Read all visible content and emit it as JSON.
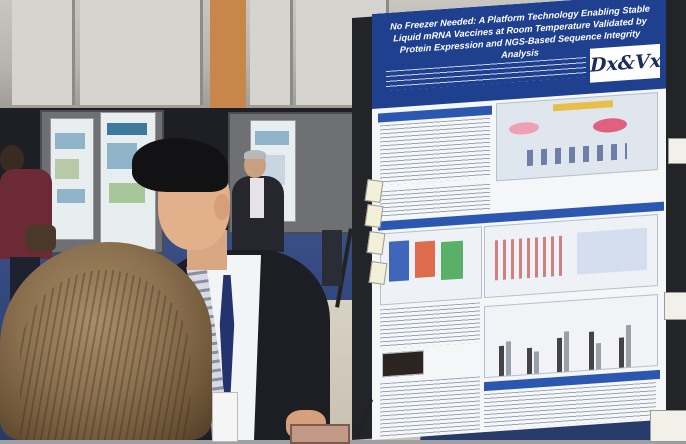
{
  "poster": {
    "title": "No Freezer Needed: A Platform Technology Enabling Stable Liquid mRNA Vaccines at Room Temperature Validated by Protein Expression and NGS-Based Sequence Integrity Analysis",
    "logo": "Dx&Vx"
  },
  "colors": {
    "poster_header": "#1f3f8f",
    "poster_section": "#2b57b0",
    "carpet": "#2f4478",
    "jacket": "#1c1e24"
  }
}
